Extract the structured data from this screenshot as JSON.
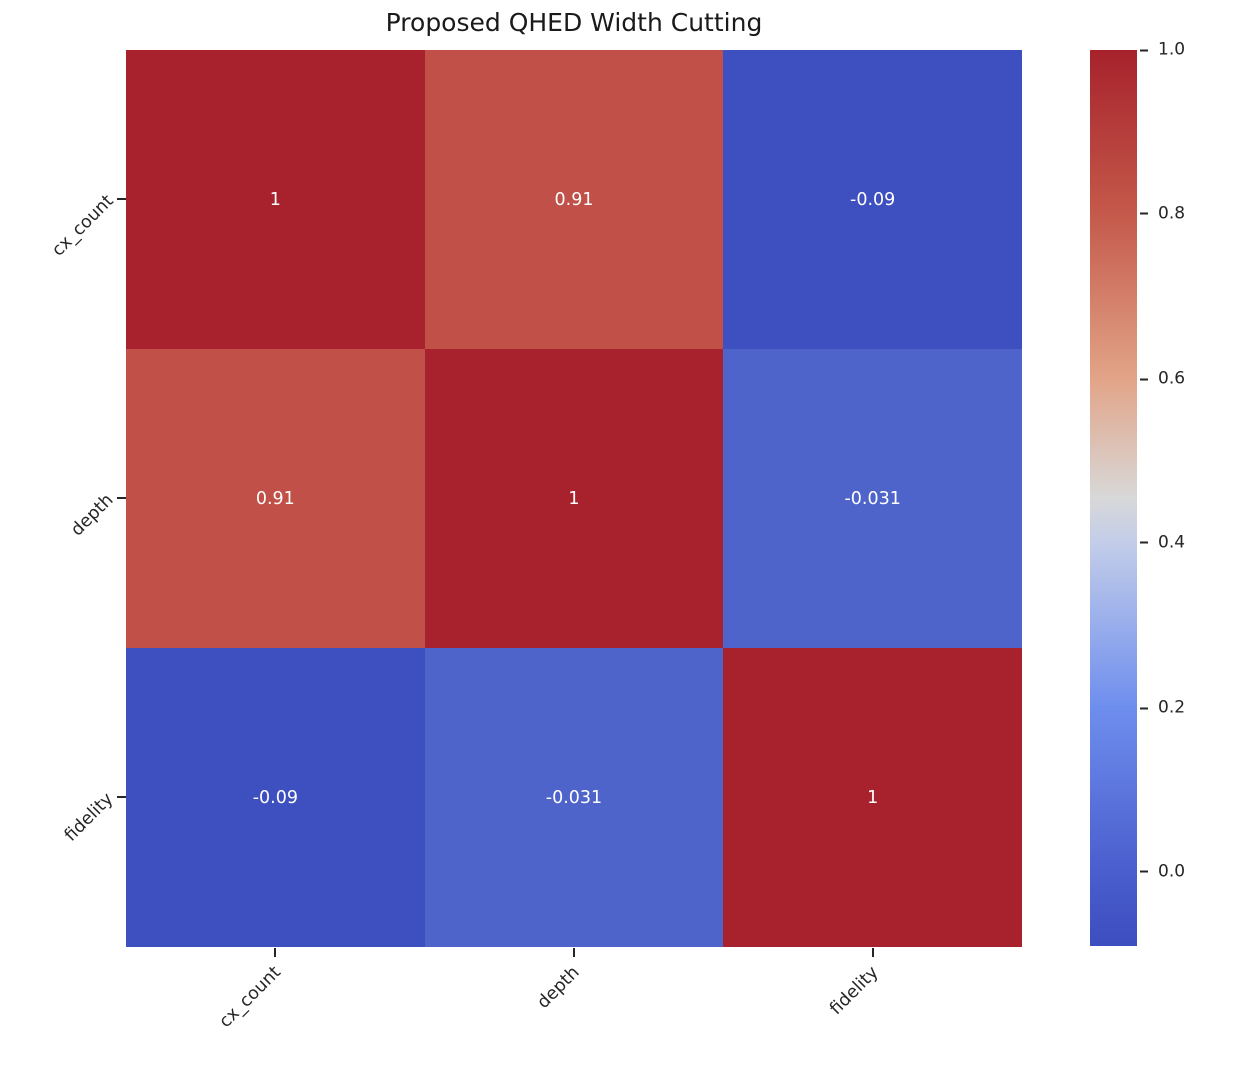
{
  "chart_data": {
    "type": "heatmap",
    "title": "Proposed QHED Width Cutting",
    "colormap": "coolwarm",
    "categories": [
      "cx_count",
      "depth",
      "fidelity"
    ],
    "x_ticklabels": [
      "cx_count",
      "depth",
      "fidelity"
    ],
    "y_ticklabels": [
      "cx_count",
      "depth",
      "fidelity"
    ],
    "matrix": [
      [
        1,
        0.91,
        -0.09
      ],
      [
        0.91,
        1,
        -0.031
      ],
      [
        -0.09,
        -0.031,
        1
      ]
    ],
    "cells": [
      {
        "row": "cx_count",
        "col": "cx_count",
        "label": "1",
        "value": 1,
        "color": "#a7222c"
      },
      {
        "row": "cx_count",
        "col": "depth",
        "label": "0.91",
        "value": 0.91,
        "color": "#c05048"
      },
      {
        "row": "cx_count",
        "col": "fidelity",
        "label": "-0.09",
        "value": -0.09,
        "color": "#3e50bf"
      },
      {
        "row": "depth",
        "col": "cx_count",
        "label": "0.91",
        "value": 0.91,
        "color": "#c05048"
      },
      {
        "row": "depth",
        "col": "depth",
        "label": "1",
        "value": 1,
        "color": "#a7222c"
      },
      {
        "row": "depth",
        "col": "fidelity",
        "label": "-0.031",
        "value": -0.031,
        "color": "#4f64ca"
      },
      {
        "row": "fidelity",
        "col": "cx_count",
        "label": "-0.09",
        "value": -0.09,
        "color": "#3e50bf"
      },
      {
        "row": "fidelity",
        "col": "depth",
        "label": "-0.031",
        "value": -0.031,
        "color": "#4f64ca"
      },
      {
        "row": "fidelity",
        "col": "fidelity",
        "label": "1",
        "value": 1,
        "color": "#a7222c"
      }
    ],
    "annotation_text_color": "#ffffff",
    "axis_text_color": "#262626",
    "colorbar": {
      "range": [
        -0.09,
        1.0
      ],
      "ticks": [
        "1.0",
        "0.8",
        "0.6",
        "0.4",
        "0.2",
        "0.0"
      ],
      "gradient_stops": [
        "#a7222c 0%",
        "#c4594a 18.3%",
        "#e2a488 36.7%",
        "#d8d8d8 50%",
        "#c3cde9 55%",
        "#6e8eee 73.4%",
        "#4a5ecd 91.7%",
        "#3d4ec0 100%"
      ]
    },
    "layout": {
      "grid": false,
      "legend": "colorbar-right"
    }
  }
}
